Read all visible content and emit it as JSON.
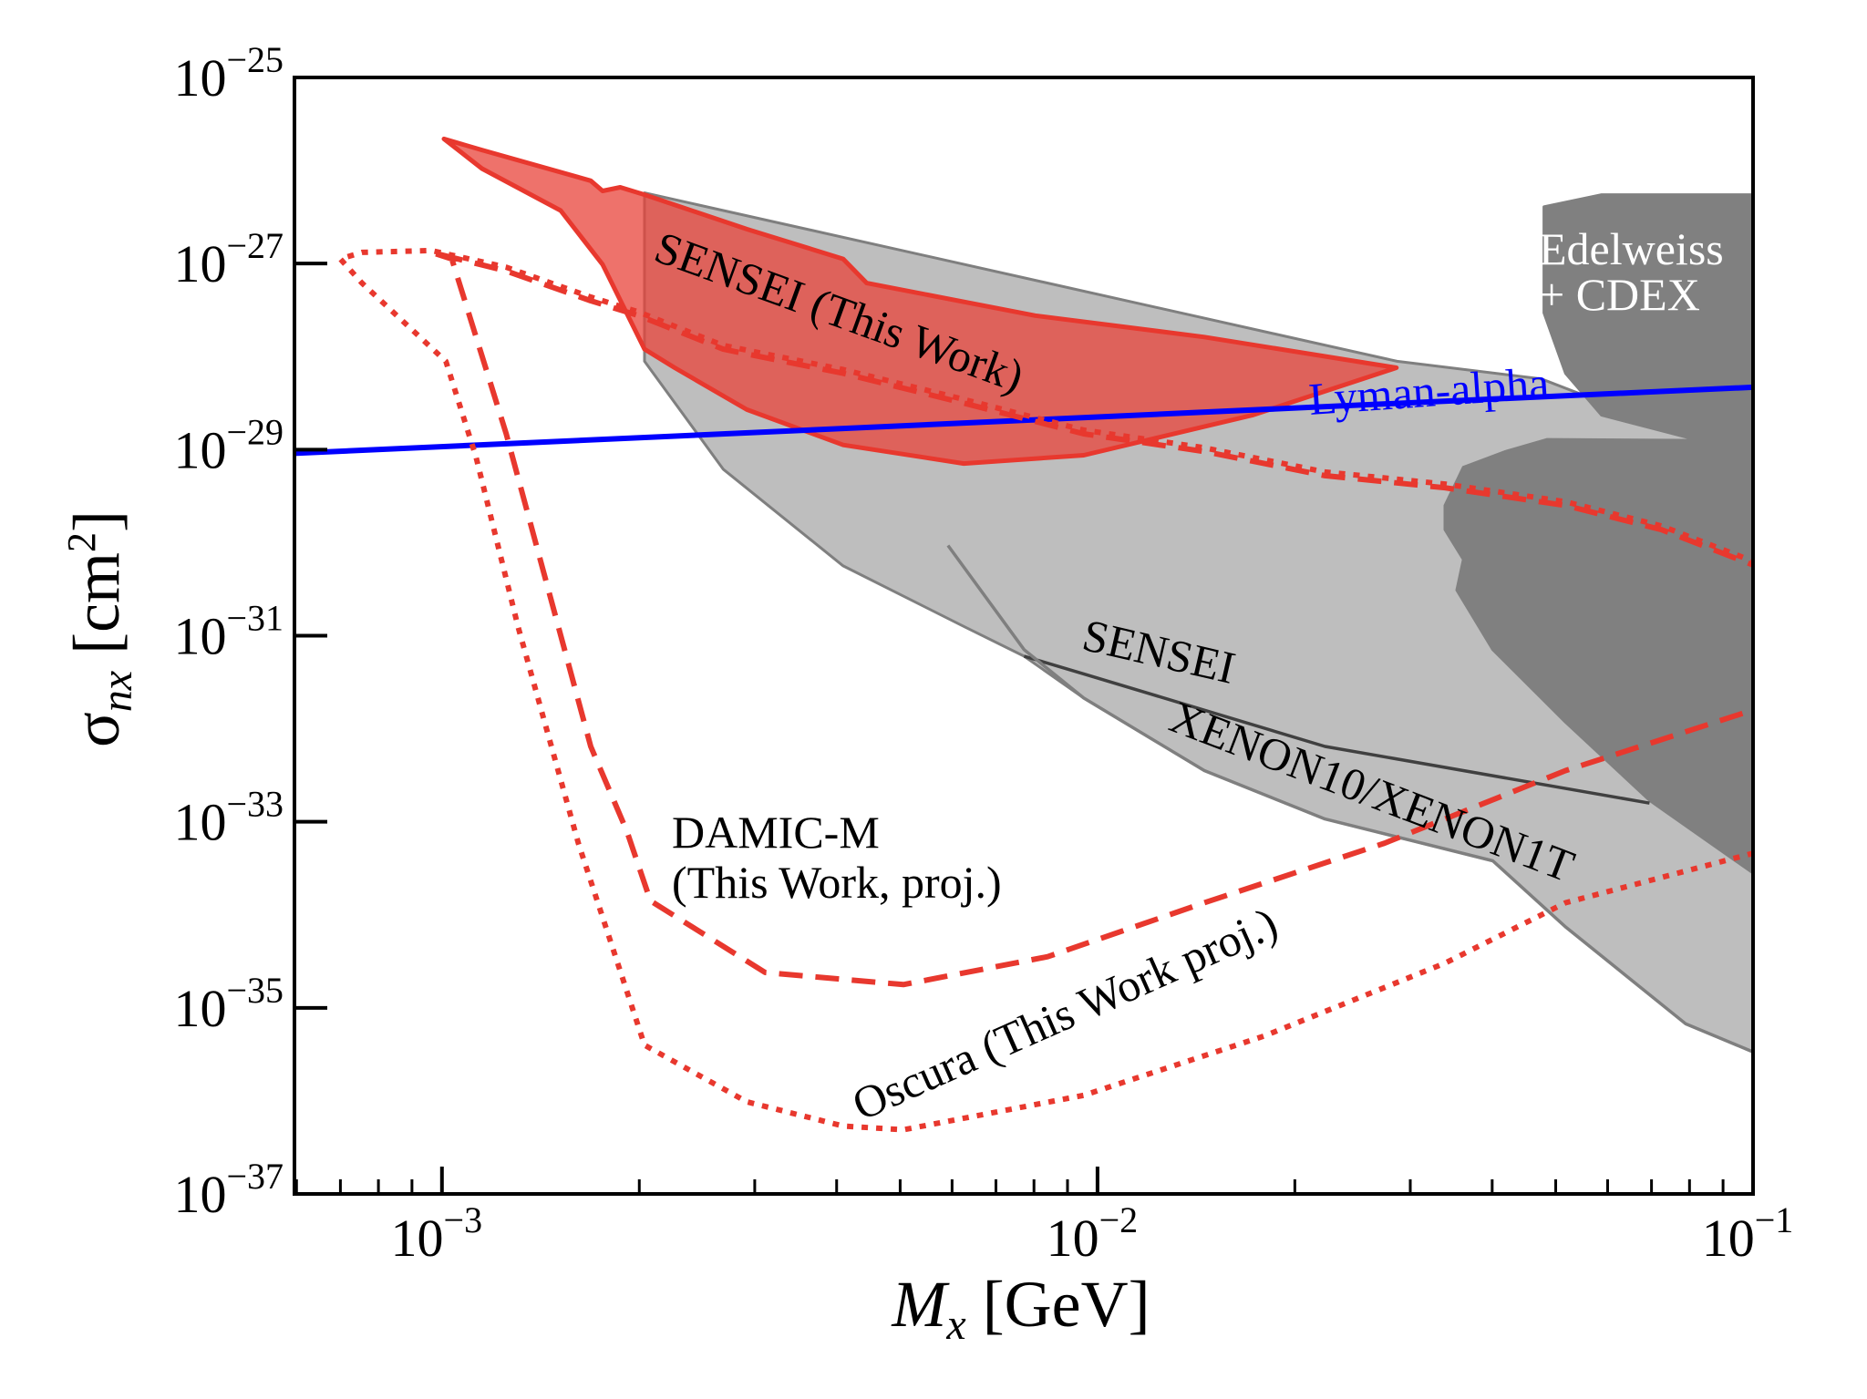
{
  "chart_data": {
    "type": "line",
    "title": "",
    "xlabel": "M_x [GeV]",
    "xlabel_parts": {
      "main": "M",
      "sub": "x",
      "unit": " [GeV]"
    },
    "ylabel": "σ_nx [cm^2]",
    "ylabel_parts": {
      "main": "σ",
      "sub": "nx",
      "unit_pre": " [cm",
      "unit_sup": "2",
      "unit_post": "]"
    },
    "xscale": "log",
    "yscale": "log",
    "xlim_log10": [
      -3.225,
      -1.0
    ],
    "ylim_log10": [
      -37,
      -25
    ],
    "grid": false,
    "x_ticks": [
      {
        "log10": -3,
        "base": "10",
        "exp": "−3"
      },
      {
        "log10": -2,
        "base": "10",
        "exp": "−2"
      },
      {
        "log10": -1,
        "base": "10",
        "exp": "−1"
      }
    ],
    "y_ticks": [
      {
        "log10": -25,
        "base": "10",
        "exp": "−25"
      },
      {
        "log10": -27,
        "base": "10",
        "exp": "−27"
      },
      {
        "log10": -29,
        "base": "10",
        "exp": "−29"
      },
      {
        "log10": -31,
        "base": "10",
        "exp": "−31"
      },
      {
        "log10": -33,
        "base": "10",
        "exp": "−33"
      },
      {
        "log10": -35,
        "base": "10",
        "exp": "−35"
      },
      {
        "log10": -37,
        "base": "10",
        "exp": "−37"
      }
    ],
    "regions": [
      {
        "name": "SENSEI / XENON10 / XENON1T (excluded)",
        "color": "#bebebe",
        "edge": "#7f7f7f",
        "points_log10": [
          [
            -2.691,
            -26.24
          ],
          [
            -1.543,
            -28.05
          ],
          [
            -1.323,
            -28.24
          ],
          [
            -1.084,
            -28.89
          ],
          [
            -0.974,
            -28.89
          ],
          [
            -0.974,
            -35.55
          ],
          [
            -1.103,
            -35.17
          ],
          [
            -1.286,
            -34.13
          ],
          [
            -1.397,
            -33.42
          ],
          [
            -1.653,
            -32.97
          ],
          [
            -1.837,
            -32.45
          ],
          [
            -2.021,
            -31.67
          ],
          [
            -2.112,
            -31.22
          ],
          [
            -2.204,
            -30.9
          ],
          [
            -2.388,
            -30.25
          ],
          [
            -2.571,
            -29.21
          ],
          [
            -2.691,
            -28.05
          ]
        ]
      },
      {
        "name": "Edelweiss + CDEX",
        "color": "#808080",
        "edge": "#808080",
        "points_log10": [
          [
            -1.319,
            -26.39
          ],
          [
            -1.231,
            -26.26
          ],
          [
            -0.974,
            -26.26
          ],
          [
            -0.974,
            -33.68
          ],
          [
            -1.158,
            -32.77
          ],
          [
            -1.286,
            -31.93
          ],
          [
            -1.397,
            -31.15
          ],
          [
            -1.452,
            -30.51
          ],
          [
            -1.442,
            -30.18
          ],
          [
            -1.47,
            -29.86
          ],
          [
            -1.47,
            -29.6
          ],
          [
            -1.442,
            -29.19
          ],
          [
            -1.378,
            -29.02
          ],
          [
            -1.314,
            -28.89
          ],
          [
            -1.084,
            -28.9
          ],
          [
            -1.231,
            -28.63
          ],
          [
            -1.286,
            -28.18
          ],
          [
            -1.319,
            -27.53
          ]
        ]
      },
      {
        "name": "SENSEI (This Work)",
        "color": "#e8433a",
        "opacity": 0.75,
        "edge": "#e8382e",
        "points_log10": [
          [
            -2.997,
            -25.66
          ],
          [
            -2.939,
            -25.78
          ],
          [
            -2.773,
            -26.11
          ],
          [
            -2.755,
            -26.22
          ],
          [
            -2.728,
            -26.18
          ],
          [
            -2.691,
            -26.26
          ],
          [
            -2.535,
            -26.63
          ],
          [
            -2.388,
            -26.95
          ],
          [
            -2.352,
            -27.21
          ],
          [
            -2.095,
            -27.56
          ],
          [
            -1.837,
            -27.79
          ],
          [
            -1.544,
            -28.12
          ],
          [
            -1.764,
            -28.63
          ],
          [
            -2.021,
            -29.06
          ],
          [
            -2.204,
            -29.15
          ],
          [
            -2.388,
            -28.95
          ],
          [
            -2.535,
            -28.57
          ],
          [
            -2.645,
            -28.12
          ],
          [
            -2.691,
            -27.92
          ],
          [
            -2.755,
            -27.01
          ],
          [
            -2.819,
            -26.43
          ],
          [
            -2.939,
            -25.98
          ]
        ]
      }
    ],
    "series": [
      {
        "name": "SENSEI boundary",
        "style": "solid",
        "color": "#404040",
        "points_log10": [
          [
            -2.112,
            -31.22
          ],
          [
            -2.021,
            -31.41
          ],
          [
            -1.653,
            -32.19
          ],
          [
            -1.158,
            -32.8
          ]
        ]
      },
      {
        "name": "XENON10/XENON1T boundary",
        "style": "solid",
        "color": "#7f7f7f",
        "points_log10": [
          [
            -2.228,
            -30.03
          ],
          [
            -2.112,
            -31.15
          ],
          [
            -2.021,
            -31.67
          ],
          [
            -1.837,
            -32.45
          ],
          [
            -1.653,
            -32.97
          ],
          [
            -1.397,
            -33.42
          ],
          [
            -1.286,
            -34.13
          ],
          [
            -1.103,
            -35.17
          ],
          [
            -0.974,
            -35.55
          ]
        ]
      },
      {
        "name": "Lyman-alpha",
        "style": "solid",
        "color": "#0000ff",
        "points_log10": [
          [
            -3.225,
            -29.04
          ],
          [
            -1.0,
            -28.33
          ]
        ]
      },
      {
        "name": "DAMIC-M (This Work, proj.)",
        "style": "dashed",
        "color": "#e8382e",
        "points_log10": [
          [
            -0.974,
            -30.31
          ],
          [
            -1.14,
            -29.86
          ],
          [
            -1.286,
            -29.6
          ],
          [
            -1.47,
            -29.41
          ],
          [
            -1.653,
            -29.28
          ],
          [
            -1.837,
            -29.02
          ],
          [
            -2.021,
            -28.83
          ],
          [
            -2.204,
            -28.5
          ],
          [
            -2.388,
            -28.18
          ],
          [
            -2.571,
            -27.92
          ],
          [
            -2.7,
            -27.56
          ],
          [
            -2.773,
            -27.4
          ],
          [
            -2.902,
            -27.08
          ],
          [
            -3.016,
            -26.88
          ],
          [
            -2.985,
            -26.95
          ],
          [
            -2.902,
            -28.83
          ],
          [
            -2.773,
            -32.19
          ],
          [
            -2.718,
            -33.1
          ],
          [
            -2.682,
            -33.85
          ],
          [
            -2.507,
            -34.62
          ],
          [
            -2.296,
            -34.75
          ],
          [
            -2.076,
            -34.45
          ],
          [
            -1.837,
            -33.87
          ],
          [
            -1.562,
            -33.23
          ],
          [
            -1.286,
            -32.45
          ],
          [
            -0.974,
            -31.74
          ]
        ]
      },
      {
        "name": "Oscura (This Work proj.)",
        "style": "dotted",
        "color": "#e8382e",
        "points_log10": [
          [
            -0.974,
            -30.27
          ],
          [
            -1.14,
            -29.82
          ],
          [
            -1.286,
            -29.56
          ],
          [
            -1.47,
            -29.37
          ],
          [
            -1.653,
            -29.24
          ],
          [
            -1.837,
            -28.98
          ],
          [
            -2.021,
            -28.79
          ],
          [
            -2.204,
            -28.46
          ],
          [
            -2.388,
            -28.14
          ],
          [
            -2.571,
            -27.88
          ],
          [
            -2.7,
            -27.52
          ],
          [
            -2.773,
            -27.36
          ],
          [
            -2.902,
            -27.04
          ],
          [
            -3.016,
            -26.86
          ],
          [
            -3.122,
            -26.88
          ],
          [
            -3.155,
            -26.95
          ],
          [
            -3.122,
            -27.21
          ],
          [
            -2.994,
            -28.05
          ],
          [
            -2.948,
            -29.08
          ],
          [
            -2.884,
            -30.9
          ],
          [
            -2.792,
            -33.23
          ],
          [
            -2.691,
            -35.4
          ],
          [
            -2.535,
            -36.01
          ],
          [
            -2.388,
            -36.27
          ],
          [
            -2.296,
            -36.31
          ],
          [
            -2.021,
            -35.94
          ],
          [
            -1.745,
            -35.3
          ],
          [
            -1.47,
            -34.52
          ],
          [
            -1.286,
            -33.87
          ],
          [
            -0.974,
            -33.29
          ]
        ]
      }
    ],
    "annotations": [
      {
        "id": "sensei-this-work",
        "text": "SENSEI (This Work)",
        "color": "#000000"
      },
      {
        "id": "edelweiss-line1",
        "text": "Edelweiss",
        "color": "#ffffff"
      },
      {
        "id": "edelweiss-line2",
        "text": "+ CDEX",
        "color": "#ffffff"
      },
      {
        "id": "lyman-alpha",
        "text": "Lyman-alpha",
        "color": "#0000ff"
      },
      {
        "id": "sensei",
        "text": "SENSEI",
        "color": "#000000"
      },
      {
        "id": "xenon",
        "text": "XENON10/XENON1T",
        "color": "#000000"
      },
      {
        "id": "damic-line1",
        "text": "DAMIC-M",
        "color": "#000000"
      },
      {
        "id": "damic-line2",
        "text": "(This Work, proj.)",
        "color": "#000000"
      },
      {
        "id": "oscura",
        "text": "Oscura (This Work proj.)",
        "color": "#000000"
      }
    ]
  }
}
